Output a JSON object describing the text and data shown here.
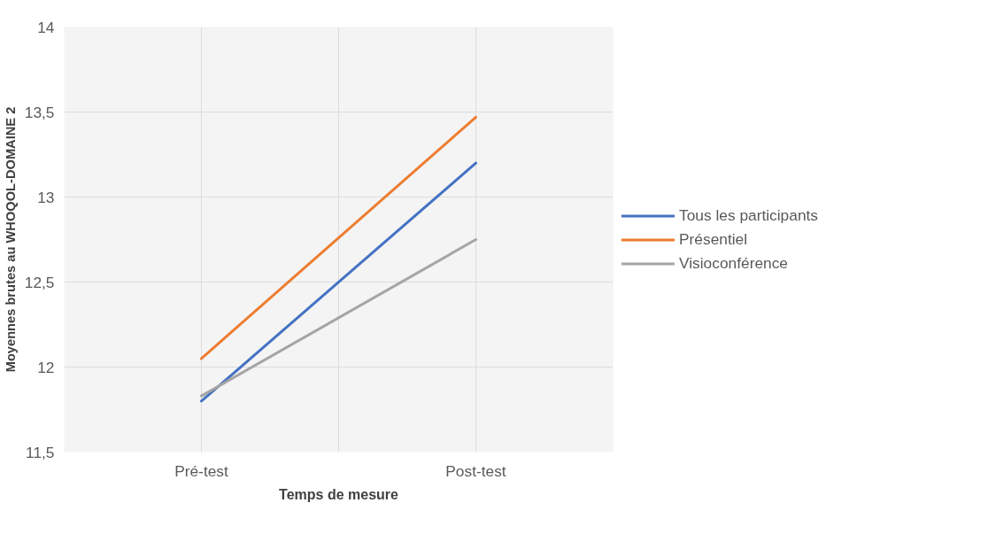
{
  "chart_data": {
    "type": "line",
    "xlabel": "Temps de mesure",
    "ylabel": "Moyennes brutes au WHOQOL-DOMAINE 2",
    "categories": [
      "Pré-test",
      "Post-test"
    ],
    "series": [
      {
        "name": "Tous les participants",
        "color": "#4472c4",
        "values": [
          11.8,
          13.2
        ]
      },
      {
        "name": "Présentiel",
        "color": "#ed7d31",
        "values": [
          12.05,
          13.47
        ]
      },
      {
        "name": "Visioconférence",
        "color": "#a5a5a5",
        "values": [
          11.83,
          12.75
        ]
      }
    ],
    "ylim": [
      11.5,
      14
    ],
    "yticks": [
      {
        "value": 11.5,
        "label": "11,5"
      },
      12,
      {
        "value": 12.5,
        "label": "12,5"
      },
      13,
      {
        "value": 13.5,
        "label": "13,5"
      },
      14
    ],
    "grid": true,
    "legend": "right",
    "marker": "none",
    "line_style": "solid"
  }
}
